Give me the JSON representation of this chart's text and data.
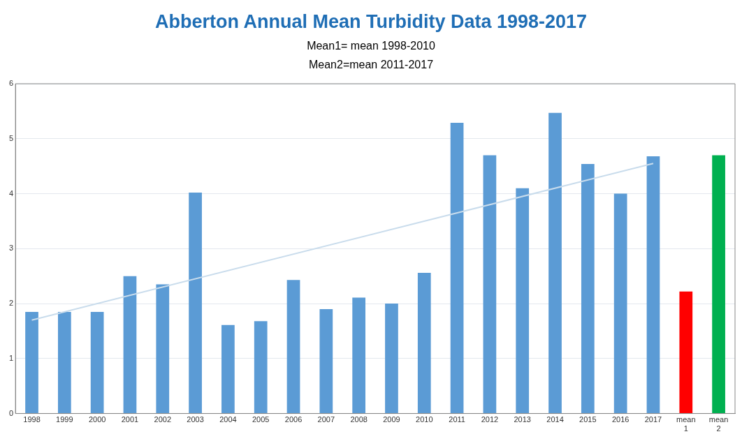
{
  "chart_data": {
    "type": "bar",
    "title": "Abberton Annual Mean Turbidity Data 1998-2017",
    "subtitle": "Mean1= mean 1998-2010\nMean2=mean 2011-2017",
    "categories": [
      "1998",
      "1999",
      "2000",
      "2001",
      "2002",
      "2003",
      "2004",
      "2005",
      "2006",
      "2007",
      "2008",
      "2009",
      "2010",
      "2011",
      "2012",
      "2013",
      "2014",
      "2015",
      "2016",
      "2017",
      "mean 1",
      "mean 2"
    ],
    "series": [
      {
        "values": [
          1.85,
          1.85,
          1.85,
          2.5,
          2.35,
          4.02,
          1.61,
          1.68,
          2.43,
          1.9,
          2.11,
          2.0,
          2.56,
          5.29,
          4.7,
          4.1,
          5.47,
          4.54,
          4.0,
          4.68,
          2.22,
          4.7
        ],
        "colors": [
          "#5b9bd5",
          "#5b9bd5",
          "#5b9bd5",
          "#5b9bd5",
          "#5b9bd5",
          "#5b9bd5",
          "#5b9bd5",
          "#5b9bd5",
          "#5b9bd5",
          "#5b9bd5",
          "#5b9bd5",
          "#5b9bd5",
          "#5b9bd5",
          "#5b9bd5",
          "#5b9bd5",
          "#5b9bd5",
          "#5b9bd5",
          "#5b9bd5",
          "#5b9bd5",
          "#5b9bd5",
          "#ff0000",
          "#00b050"
        ]
      },
      {
        "type": "line",
        "values": [
          1.7,
          null,
          null,
          null,
          null,
          null,
          null,
          null,
          null,
          null,
          null,
          null,
          null,
          null,
          null,
          null,
          null,
          null,
          null,
          4.55,
          null,
          null
        ],
        "color": "#c9dcec"
      }
    ],
    "ylim": [
      0,
      6
    ],
    "yticks": [
      0,
      1,
      2,
      3,
      4,
      5,
      6
    ],
    "grid": "y",
    "legend": false
  }
}
